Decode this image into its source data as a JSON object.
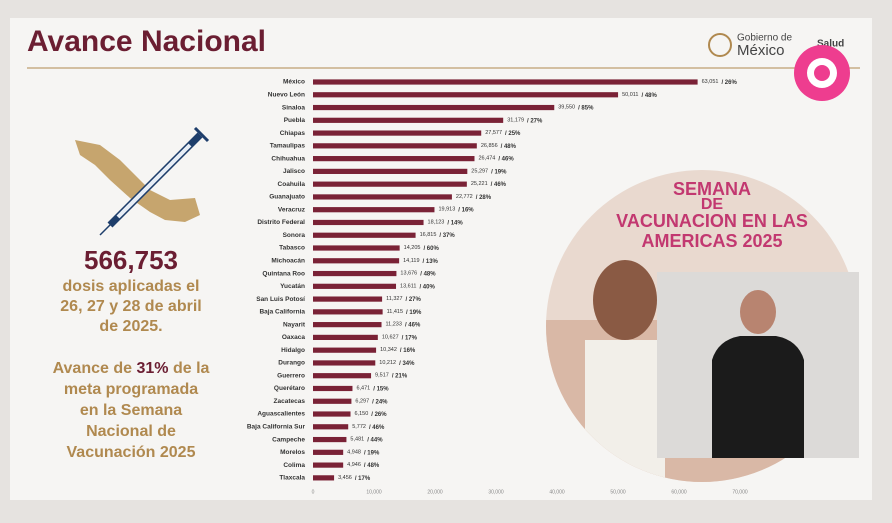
{
  "header": {
    "title": "Avance Nacional",
    "logo_line1": "Gobierno de",
    "logo_line2": "México",
    "logo_line3": "Salud"
  },
  "summary": {
    "total": "566,753",
    "lines": [
      "dosis aplicadas el",
      "26, 27 y 28 de abril",
      "de 2025."
    ]
  },
  "progress": {
    "lead": "Avance de",
    "highlight": "31%",
    "rest": "de la",
    "lines": [
      "meta programada",
      "en la Semana",
      "Nacional de",
      "Vacunación 2025"
    ]
  },
  "photo_banner": [
    "SEMANA",
    "DE",
    "VACUNACION EN LAS",
    "AMERICAS 2025"
  ],
  "chart_data": {
    "type": "bar",
    "orientation": "horizontal",
    "color": "#7a2236",
    "categories": [
      "México",
      "Nuevo León",
      "Sinaloa",
      "Puebla",
      "Chiapas",
      "Tamaulipas",
      "Chihuahua",
      "Jalisco",
      "Coahuila",
      "Guanajuato",
      "Veracruz",
      "Distrito Federal",
      "Sonora",
      "Tabasco",
      "Michoacán",
      "Quintana Roo",
      "Yucatán",
      "San Luis Potosí",
      "Baja California",
      "Nayarit",
      "Oaxaca",
      "Hidalgo",
      "Durango",
      "Guerrero",
      "Querétaro",
      "Zacatecas",
      "Aguascalientes",
      "Baja California Sur",
      "Campeche",
      "Morelos",
      "Colima",
      "Tlaxcala"
    ],
    "values": [
      63051,
      50011,
      39550,
      31179,
      27577,
      26856,
      26474,
      25297,
      25221,
      22772,
      19913,
      18123,
      16815,
      14205,
      14119,
      13676,
      13611,
      11327,
      11415,
      11233,
      10627,
      10342,
      10212,
      9517,
      6471,
      6297,
      6150,
      5772,
      5481,
      4948,
      4946,
      3456
    ],
    "value_labels": [
      "63,051",
      "50,011",
      "39,550",
      "31,179",
      "27,577",
      "26,856",
      "26,474",
      "25,297",
      "25,221",
      "22,772",
      "19,913",
      "18,123",
      "16,815",
      "14,205",
      "14,119",
      "13,676",
      "13,611",
      "11,327",
      "11,415",
      "11,233",
      "10,627",
      "10,342",
      "10,212",
      "9,517",
      "6,471",
      "6,297",
      "6,150",
      "5,772",
      "5,481",
      "4,948",
      "4,946",
      "3,456"
    ],
    "percent_labels": [
      "/ 26%",
      "/ 48%",
      "/ 85%",
      "/ 27%",
      "/ 25%",
      "/ 48%",
      "/ 46%",
      "/ 19%",
      "/ 46%",
      "/ 28%",
      "/ 16%",
      "/ 14%",
      "/ 37%",
      "/ 60%",
      "/ 13%",
      "/ 48%",
      "/ 40%",
      "/ 27%",
      "/ 19%",
      "/ 46%",
      "/ 17%",
      "/ 16%",
      "/ 34%",
      "/ 21%",
      "/ 15%",
      "/ 24%",
      "/ 26%",
      "/ 46%",
      "/ 44%",
      "/ 19%",
      "/ 48%",
      "/ 17%"
    ],
    "xlim": [
      0,
      70000
    ],
    "xticks": [
      0,
      {
        "value": 10000,
        "label": "10,000"
      },
      {
        "value": 20000,
        "label": "20,000"
      },
      {
        "value": 30000,
        "label": "30,000"
      },
      {
        "value": 40000,
        "label": "40,000"
      },
      {
        "value": 50000,
        "label": "50,000"
      },
      {
        "value": 60000,
        "label": "60,000"
      },
      {
        "value": 70000,
        "label": "70,000"
      }
    ]
  }
}
